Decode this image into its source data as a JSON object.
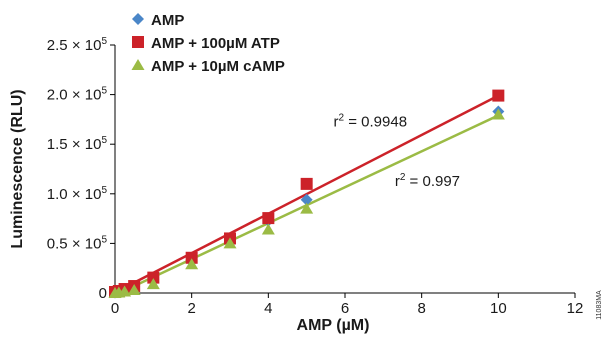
{
  "chart_data": {
    "type": "scatter",
    "xlabel": "AMP (µM)",
    "ylabel": "Luminescence (RLU)",
    "xlim": [
      0,
      12
    ],
    "ylim": [
      0,
      250000
    ],
    "x_ticks": [
      {
        "value": 0,
        "label": "0"
      },
      {
        "value": 2,
        "label": "2"
      },
      {
        "value": 4,
        "label": "4"
      },
      {
        "value": 6,
        "label": "6"
      },
      {
        "value": 8,
        "label": "8"
      },
      {
        "value": 10,
        "label": "10"
      },
      {
        "value": 12,
        "label": "12"
      }
    ],
    "y_ticks": [
      {
        "value": 0,
        "mant": "0",
        "exp": ""
      },
      {
        "value": 50000,
        "mant": "0.5 × 10",
        "exp": "5"
      },
      {
        "value": 100000,
        "mant": "1.0 × 10",
        "exp": "5"
      },
      {
        "value": 150000,
        "mant": "1.5 × 10",
        "exp": "5"
      },
      {
        "value": 200000,
        "mant": "2.0 × 10",
        "exp": "5"
      },
      {
        "value": 250000,
        "mant": "2.5 × 10",
        "exp": "5"
      }
    ],
    "grid": false,
    "legend_position": "top-left",
    "series": [
      {
        "name": "AMP",
        "marker": "diamond",
        "color": "#4a86c8",
        "x": [
          0,
          0.1,
          0.25,
          0.5,
          1,
          2,
          3,
          4,
          5,
          10
        ],
        "y": [
          500,
          1500,
          3500,
          6500,
          14000,
          32000,
          53000,
          73000,
          94000,
          183000
        ]
      },
      {
        "name": "AMP + 100µM ATP",
        "marker": "square",
        "color": "#cc2229",
        "x": [
          0,
          0.1,
          0.25,
          0.5,
          1,
          2,
          3,
          4,
          5,
          10
        ],
        "y": [
          1000,
          2000,
          4000,
          7000,
          15500,
          35500,
          55000,
          75500,
          110000,
          199000
        ],
        "fit": {
          "x": [
            0,
            10
          ],
          "y": [
            500,
            199000
          ]
        }
      },
      {
        "name": "AMP + 10µM cAMP",
        "marker": "triangle",
        "color": "#9bbb45",
        "x": [
          0,
          0.1,
          0.25,
          0.5,
          1,
          2,
          3,
          4,
          5,
          10
        ],
        "y": [
          0,
          500,
          1500,
          3000,
          9000,
          29000,
          50000,
          64000,
          85000,
          180000
        ],
        "fit": {
          "x": [
            0,
            10
          ],
          "y": [
            -2000,
            179000
          ]
        }
      }
    ],
    "annotations": [
      {
        "text": "r",
        "sup": "2",
        "rest": " = 0.9948",
        "x": 5.7,
        "y": 168000
      },
      {
        "text": "r",
        "sup": "2",
        "rest": " = 0.997",
        "x": 7.3,
        "y": 108000
      }
    ]
  },
  "side_code": "11083MA"
}
